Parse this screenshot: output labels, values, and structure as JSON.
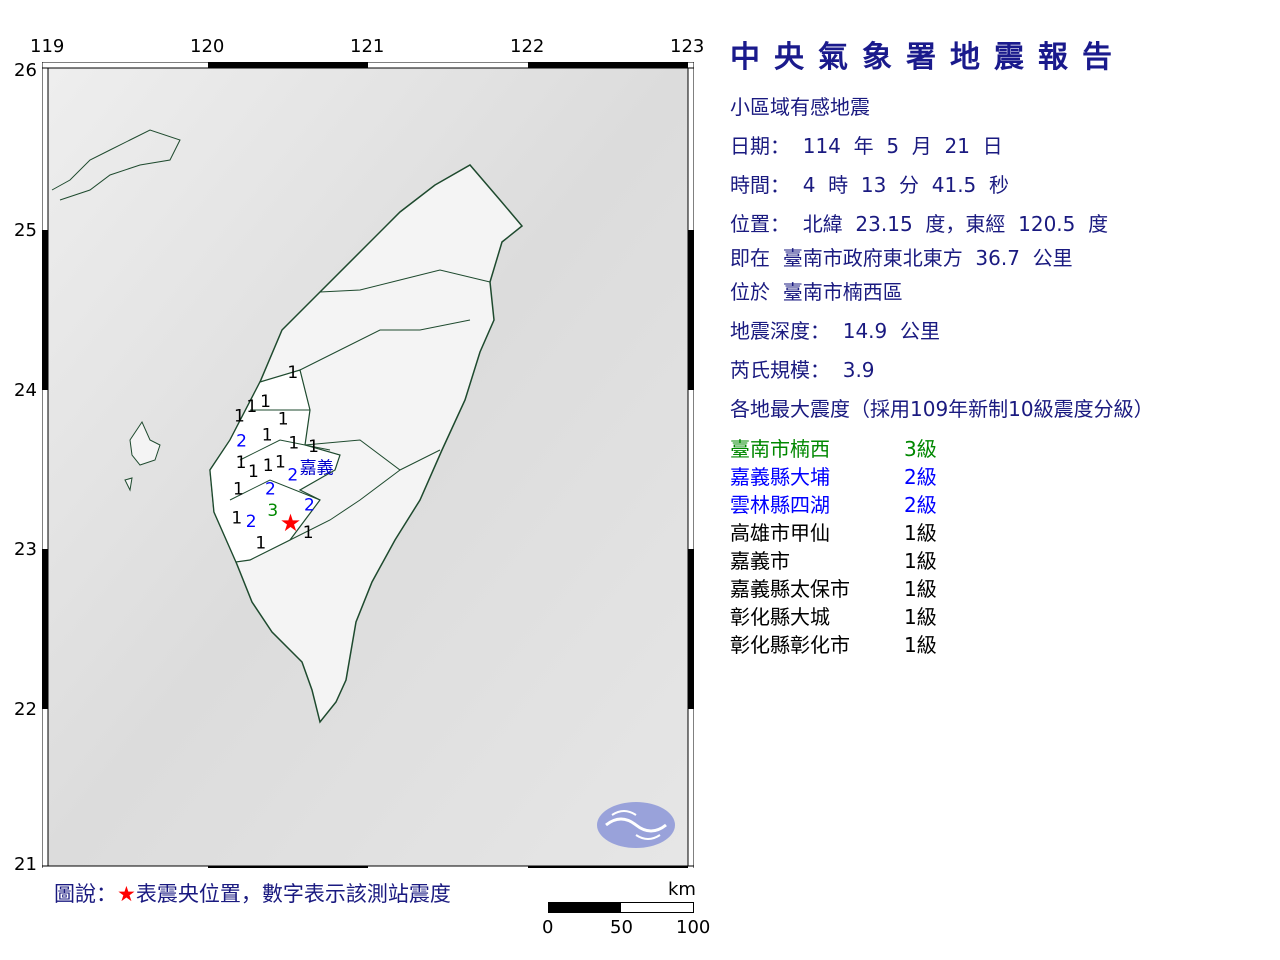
{
  "map": {
    "lon_ticks": [
      "119",
      "120",
      "121",
      "122",
      "123"
    ],
    "lat_ticks": [
      "26",
      "25",
      "24",
      "23",
      "22",
      "21"
    ],
    "lon_range": [
      119,
      123
    ],
    "lat_range": [
      21,
      26
    ],
    "epicenter": {
      "lon": 120.5,
      "lat": 23.15,
      "icon": "red-star-icon",
      "color": "#ff0000"
    },
    "place_label": {
      "text": "嘉義",
      "lon": 120.59,
      "lat": 23.52
    },
    "stations": [
      {
        "lon": 120.53,
        "lat": 24.1,
        "v": "1"
      },
      {
        "lon": 120.36,
        "lat": 23.92,
        "v": "1"
      },
      {
        "lon": 120.27,
        "lat": 23.89,
        "v": "1"
      },
      {
        "lon": 120.2,
        "lat": 23.83,
        "v": "1"
      },
      {
        "lon": 120.47,
        "lat": 23.81,
        "v": "1"
      },
      {
        "lon": 120.21,
        "lat": 23.66,
        "v": "2"
      },
      {
        "lon": 120.37,
        "lat": 23.71,
        "v": "1"
      },
      {
        "lon": 120.53,
        "lat": 23.66,
        "v": "1"
      },
      {
        "lon": 120.66,
        "lat": 23.62,
        "v": "1"
      },
      {
        "lon": 120.21,
        "lat": 23.55,
        "v": "1"
      },
      {
        "lon": 120.28,
        "lat": 23.48,
        "v": "1"
      },
      {
        "lon": 120.41,
        "lat": 23.52,
        "v": "1"
      },
      {
        "lon": 120.46,
        "lat": 23.54,
        "v": "1"
      },
      {
        "lon": 120.59,
        "lat": 23.46,
        "v": "2"
      },
      {
        "lon": 120.19,
        "lat": 23.37,
        "v": "1"
      },
      {
        "lon": 120.39,
        "lat": 23.37,
        "v": "2"
      },
      {
        "lon": 120.49,
        "lat": 23.24,
        "v": "3"
      },
      {
        "lon": 120.61,
        "lat": 23.27,
        "v": "2"
      },
      {
        "lon": 120.18,
        "lat": 23.19,
        "v": "1"
      },
      {
        "lon": 120.27,
        "lat": 23.16,
        "v": "2"
      },
      {
        "lon": 120.33,
        "lat": 23.04,
        "v": "1"
      },
      {
        "lon": 120.58,
        "lat": 23.1,
        "v": "1"
      }
    ],
    "intensity_colors": {
      "1": "#000000",
      "2": "#0000ff",
      "3": "#008800"
    },
    "logo": "cwa-logo",
    "scale": {
      "unit": "km",
      "labels": [
        "0",
        "50",
        "100"
      ]
    }
  },
  "legend": {
    "prefix": "圖說：",
    "star": "★",
    "text": "表震央位置，數字表示該測站震度"
  },
  "report": {
    "title": "中央氣象署地震報告",
    "type": "小區域有感地震",
    "date": "日期：  114  年  5  月  21  日",
    "time": "時間：  4  時  13  分  41.5  秒",
    "location": "位置：  北緯  23.15  度，東經  120.5  度",
    "relative": "即在  臺南市政府東北東方  36.7  公里",
    "district": "位於  臺南市楠西區",
    "depth": "地震深度：  14.9  公里",
    "magnitude": "芮氏規模：  3.9",
    "intensity_header": "各地最大震度（採用109年新制10級震度分級）",
    "intensities": [
      {
        "place": "臺南市楠西",
        "level": "3級",
        "color": "#008800"
      },
      {
        "place": "嘉義縣大埔",
        "level": "2級",
        "color": "#0000ff"
      },
      {
        "place": "雲林縣四湖",
        "level": "2級",
        "color": "#0000ff"
      },
      {
        "place": "高雄市甲仙",
        "level": "1級",
        "color": "#000000"
      },
      {
        "place": "嘉義市",
        "level": "1級",
        "color": "#000000"
      },
      {
        "place": "嘉義縣太保市",
        "level": "1級",
        "color": "#000000"
      },
      {
        "place": "彰化縣大城",
        "level": "1級",
        "color": "#000000"
      },
      {
        "place": "彰化縣彰化市",
        "level": "1級",
        "color": "#000000"
      }
    ]
  }
}
